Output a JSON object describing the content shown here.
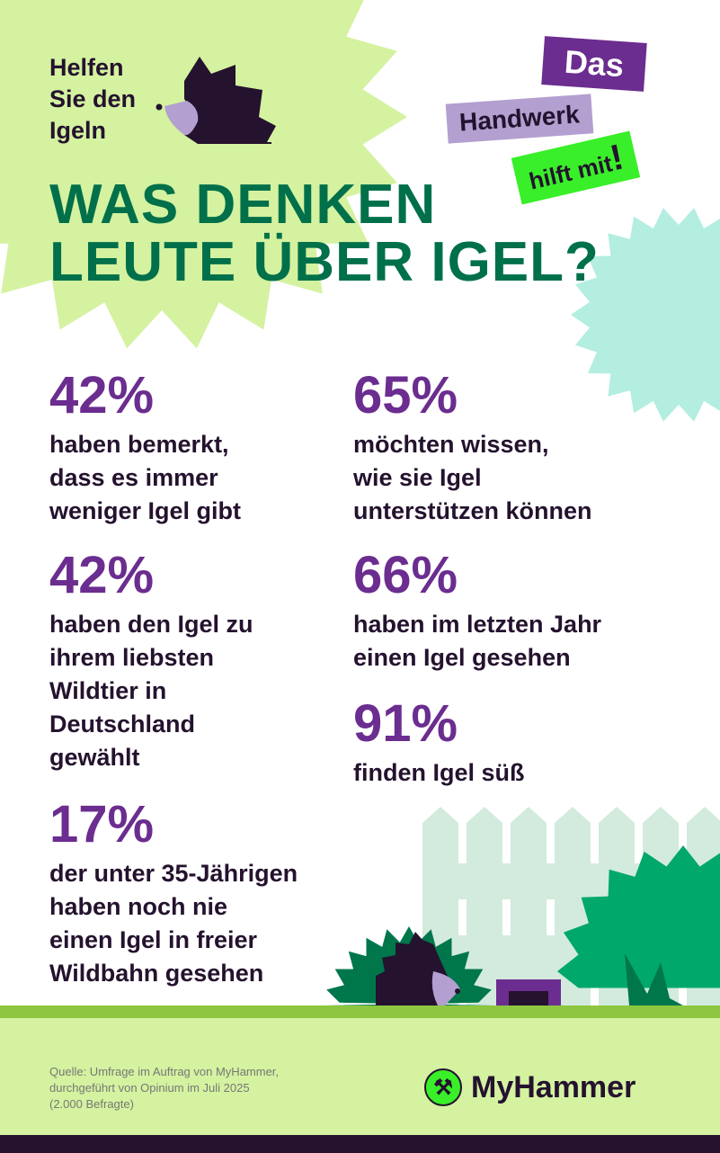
{
  "header": {
    "kicker": [
      "Helfen",
      "Sie den",
      "Igeln"
    ],
    "tags": [
      "Das",
      "Handwerk",
      "hilft mit",
      "!"
    ],
    "title": [
      "WAS DENKEN",
      "LEUTE ÜBER IGEL?"
    ]
  },
  "stats": [
    {
      "value": "42%",
      "lines": [
        "haben bemerkt,",
        "dass es immer",
        "weniger Igel gibt"
      ]
    },
    {
      "value": "65%",
      "lines": [
        "möchten wissen,",
        "wie sie Igel",
        "unterstützen können"
      ]
    },
    {
      "value": "42%",
      "lines": [
        "haben den Igel zu",
        "ihrem liebsten",
        "Wildtier in",
        "Deutschland",
        "gewählt"
      ]
    },
    {
      "value": "66%",
      "lines": [
        "haben im letzten Jahr",
        "einen Igel gesehen"
      ]
    },
    {
      "value": "91%",
      "lines": [
        "finden Igel süß"
      ]
    },
    {
      "value": "17%",
      "lines": [
        "der unter 35-Jährigen",
        "haben noch nie",
        "einen Igel in freier",
        "Wildbahn gesehen"
      ]
    }
  ],
  "footer": {
    "source": [
      "Quelle: Umfrage im Auftrag von MyHammer,",
      "durchgeführt von Opinium im Juli 2025",
      "(2.000 Befragte)"
    ],
    "logo_text": "MyHammer",
    "logo_icon": "hammer-icon"
  },
  "colors": {
    "light_green": "#d4f2a0",
    "title_green": "#00704a",
    "purple": "#6b2d8f",
    "dark": "#24122e",
    "mint": "#b3eee0",
    "lavender": "#b39fd0",
    "bright_green": "#39ef29"
  }
}
